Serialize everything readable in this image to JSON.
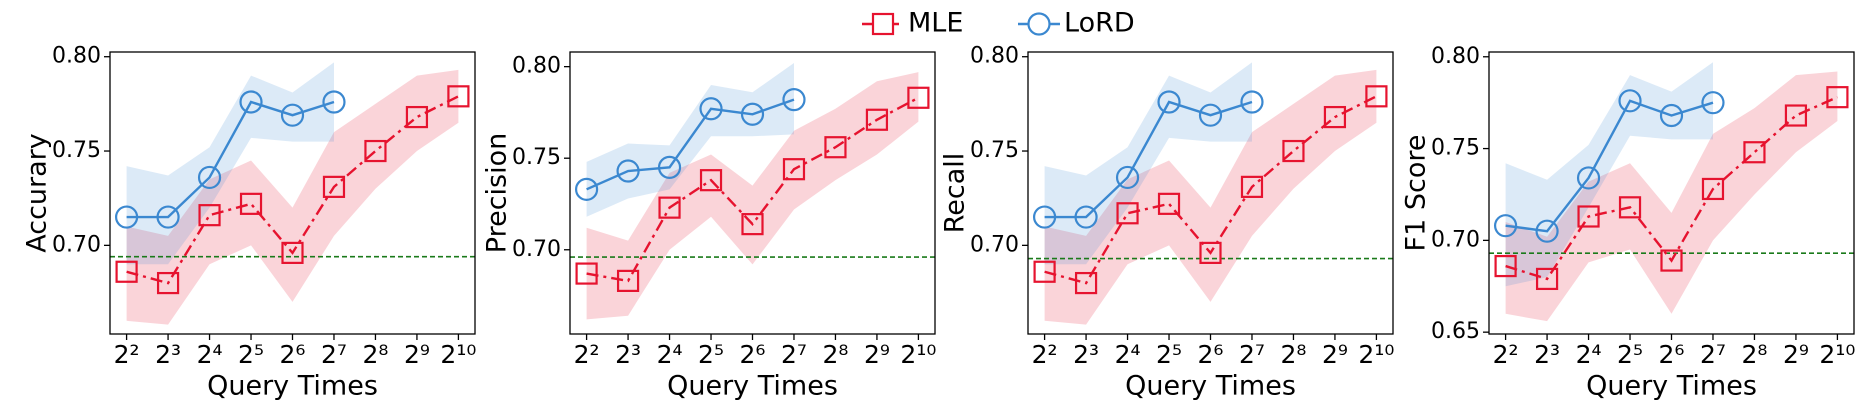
{
  "chart_data": [
    {
      "type": "line",
      "ylabel": "Accurary",
      "xlabel": "Query Times",
      "categories": [
        "2²",
        "2³",
        "2⁴",
        "2⁵",
        "2⁶",
        "2⁷",
        "2⁸",
        "2⁹",
        "2¹⁰"
      ],
      "series": [
        {
          "name": "MLE",
          "color": "#e6132f",
          "marker": "square",
          "linestyle": "dashdot",
          "values": [
            0.686,
            0.68,
            0.716,
            0.722,
            0.696,
            0.731,
            0.75,
            0.768,
            0.779
          ],
          "lower": [
            0.66,
            0.658,
            0.69,
            0.7,
            0.67,
            0.705,
            0.73,
            0.75,
            0.765
          ],
          "upper": [
            0.71,
            0.705,
            0.735,
            0.745,
            0.72,
            0.76,
            0.775,
            0.79,
            0.793
          ]
        },
        {
          "name": "LoRD",
          "color": "#3b88d0",
          "marker": "circle",
          "linestyle": "solid",
          "values": [
            0.715,
            0.715,
            0.736,
            0.776,
            0.769,
            0.776,
            null,
            null,
            null
          ],
          "lower": [
            0.69,
            0.69,
            0.72,
            0.757,
            0.755,
            0.755,
            null,
            null,
            null
          ],
          "upper": [
            0.742,
            0.737,
            0.752,
            0.79,
            0.781,
            0.797,
            null,
            null,
            null
          ]
        }
      ],
      "reference_line": {
        "value": 0.694,
        "color": "#1a7a1a"
      },
      "ylim": [
        0.653,
        0.8025
      ],
      "yticks": [
        {
          "value": 0.7,
          "label": "0.70"
        },
        {
          "value": 0.75,
          "label": "0.75"
        },
        {
          "value": 0.8,
          "label": "0.80"
        }
      ]
    },
    {
      "type": "line",
      "ylabel": "Precision",
      "xlabel": "Query Times",
      "categories": [
        "2²",
        "2³",
        "2⁴",
        "2⁵",
        "2⁶",
        "2⁷",
        "2⁸",
        "2⁹",
        "2¹⁰"
      ],
      "series": [
        {
          "name": "MLE",
          "color": "#e6132f",
          "marker": "square",
          "linestyle": "dashdot",
          "values": [
            0.687,
            0.683,
            0.723,
            0.738,
            0.714,
            0.744,
            0.756,
            0.771,
            0.783
          ],
          "lower": [
            0.662,
            0.664,
            0.7,
            0.718,
            0.692,
            0.722,
            0.738,
            0.752,
            0.77
          ],
          "upper": [
            0.712,
            0.705,
            0.742,
            0.752,
            0.735,
            0.765,
            0.777,
            0.792,
            0.797
          ]
        },
        {
          "name": "LoRD",
          "color": "#3b88d0",
          "marker": "circle",
          "linestyle": "solid",
          "values": [
            0.733,
            0.743,
            0.745,
            0.777,
            0.774,
            0.782,
            null,
            null,
            null
          ],
          "lower": [
            0.718,
            0.728,
            0.733,
            0.762,
            0.762,
            0.763,
            null,
            null,
            null
          ],
          "upper": [
            0.748,
            0.758,
            0.757,
            0.79,
            0.786,
            0.802,
            null,
            null,
            null
          ]
        }
      ],
      "reference_line": {
        "value": 0.696,
        "color": "#1a7a1a"
      },
      "ylim": [
        0.654,
        0.808
      ],
      "yticks": [
        {
          "value": 0.7,
          "label": "0.70"
        },
        {
          "value": 0.75,
          "label": "0.75"
        },
        {
          "value": 0.8,
          "label": "0.80"
        }
      ]
    },
    {
      "type": "line",
      "ylabel": "Recall",
      "xlabel": "Query Times",
      "categories": [
        "2²",
        "2³",
        "2⁴",
        "2⁵",
        "2⁶",
        "2⁷",
        "2⁸",
        "2⁹",
        "2¹⁰"
      ],
      "series": [
        {
          "name": "MLE",
          "color": "#e6132f",
          "marker": "square",
          "linestyle": "dashdot",
          "values": [
            0.686,
            0.68,
            0.717,
            0.722,
            0.696,
            0.731,
            0.75,
            0.768,
            0.779
          ],
          "lower": [
            0.66,
            0.658,
            0.69,
            0.7,
            0.67,
            0.705,
            0.73,
            0.75,
            0.765
          ],
          "upper": [
            0.71,
            0.705,
            0.735,
            0.745,
            0.72,
            0.76,
            0.775,
            0.79,
            0.793
          ]
        },
        {
          "name": "LoRD",
          "color": "#3b88d0",
          "marker": "circle",
          "linestyle": "solid",
          "values": [
            0.715,
            0.715,
            0.736,
            0.776,
            0.769,
            0.776,
            null,
            null,
            null
          ],
          "lower": [
            0.69,
            0.69,
            0.72,
            0.757,
            0.755,
            0.755,
            null,
            null,
            null
          ],
          "upper": [
            0.742,
            0.737,
            0.752,
            0.79,
            0.781,
            0.797,
            null,
            null,
            null
          ]
        }
      ],
      "reference_line": {
        "value": 0.693,
        "color": "#1a7a1a"
      },
      "ylim": [
        0.653,
        0.8025
      ],
      "yticks": [
        {
          "value": 0.7,
          "label": "0.70"
        },
        {
          "value": 0.75,
          "label": "0.75"
        },
        {
          "value": 0.8,
          "label": "0.80"
        }
      ]
    },
    {
      "type": "line",
      "ylabel": "F1 Score",
      "xlabel": "Query Times",
      "categories": [
        "2²",
        "2³",
        "2⁴",
        "2⁵",
        "2⁶",
        "2⁷",
        "2⁸",
        "2⁹",
        "2¹⁰"
      ],
      "series": [
        {
          "name": "MLE",
          "color": "#e6132f",
          "marker": "square",
          "linestyle": "dashdot",
          "values": [
            0.686,
            0.679,
            0.713,
            0.718,
            0.689,
            0.728,
            0.748,
            0.768,
            0.778
          ],
          "lower": [
            0.66,
            0.656,
            0.688,
            0.695,
            0.66,
            0.7,
            0.725,
            0.748,
            0.765
          ],
          "upper": [
            0.71,
            0.702,
            0.732,
            0.742,
            0.715,
            0.758,
            0.772,
            0.79,
            0.792
          ]
        },
        {
          "name": "LoRD",
          "color": "#3b88d0",
          "marker": "circle",
          "linestyle": "solid",
          "values": [
            0.708,
            0.705,
            0.734,
            0.776,
            0.768,
            0.775,
            null,
            null,
            null
          ],
          "lower": [
            0.675,
            0.68,
            0.718,
            0.757,
            0.755,
            0.755,
            null,
            null,
            null
          ],
          "upper": [
            0.742,
            0.733,
            0.752,
            0.79,
            0.781,
            0.797,
            null,
            null,
            null
          ]
        }
      ],
      "reference_line": {
        "value": 0.693,
        "color": "#1a7a1a"
      },
      "ylim": [
        0.649,
        0.8026
      ],
      "yticks": [
        {
          "value": 0.65,
          "label": "0.65"
        },
        {
          "value": 0.7,
          "label": "0.70"
        },
        {
          "value": 0.75,
          "label": "0.75"
        },
        {
          "value": 0.8,
          "label": "0.80"
        }
      ]
    }
  ]
}
